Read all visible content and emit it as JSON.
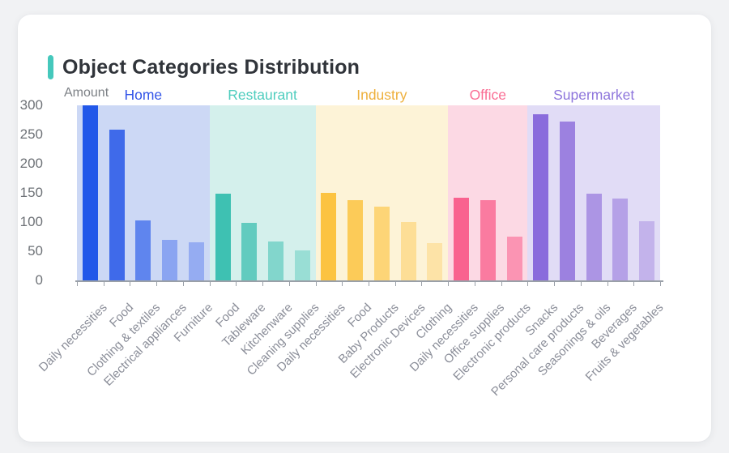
{
  "card": {
    "accent_color": "#45c8bc",
    "background": "#ffffff",
    "page_background": "#f1f2f4"
  },
  "chart_data": {
    "type": "bar",
    "title": "Object Categories Distribution",
    "ylabel": "Amount",
    "xlabel": "",
    "ylim": [
      0,
      300
    ],
    "yticks": [
      300,
      250,
      200,
      150,
      100,
      50,
      0
    ],
    "grid": false,
    "legend_position": "group headers above plot",
    "axis_line_color": "#9aa0a8",
    "ytick_label_color": "#6e7277",
    "category_label_color": "#8b8e99",
    "groups": [
      {
        "name": "Home",
        "label_color": "#3355e8",
        "band_color": "#ccd8f5",
        "categories": [
          "Daily necessities",
          "Food",
          "Clothing & textiles",
          "Electrical appliances",
          "Furniture"
        ],
        "values": [
          300,
          258,
          103,
          70,
          65
        ],
        "bar_colors": [
          "#2258e9",
          "#3f6aea",
          "#5f85ee",
          "#8aa4f1",
          "#95acf2"
        ]
      },
      {
        "name": "Restaurant",
        "label_color": "#4ecdbe",
        "band_color": "#d4f0ec",
        "categories": [
          "Food",
          "Tableware",
          "Kitchenware",
          "Cleaning supplies"
        ],
        "values": [
          149,
          98,
          66,
          51
        ],
        "bar_colors": [
          "#3ec1b2",
          "#62cbbf",
          "#82d6cc",
          "#99ded5"
        ]
      },
      {
        "name": "Industry",
        "label_color": "#eeb03d",
        "band_color": "#fdf3d7",
        "categories": [
          "Daily necessities",
          "Food",
          "Baby Products",
          "Electronic Devices",
          "Clothing"
        ],
        "values": [
          150,
          138,
          126,
          100,
          64
        ],
        "bar_colors": [
          "#fcc341",
          "#fccb58",
          "#fdd577",
          "#fdde96",
          "#fde3a7"
        ]
      },
      {
        "name": "Office",
        "label_color": "#fa6e94",
        "band_color": "#fcd9e4",
        "categories": [
          "Daily necessities",
          "Office supplies",
          "Electronic products"
        ],
        "values": [
          142,
          138,
          75
        ],
        "bar_colors": [
          "#f9628f",
          "#fa7ba0",
          "#fb94b3"
        ]
      },
      {
        "name": "Supermarket",
        "label_color": "#8e76dc",
        "band_color": "#e1dcf6",
        "categories": [
          "Snacks",
          "Personal care products",
          "Seasonings & oils",
          "Beverages",
          "Fruits & vegetables"
        ],
        "values": [
          285,
          272,
          148,
          140,
          102
        ],
        "bar_colors": [
          "#8a6cdc",
          "#9c81e0",
          "#ac95e4",
          "#b5a1e7",
          "#c3b3eb"
        ]
      }
    ]
  }
}
